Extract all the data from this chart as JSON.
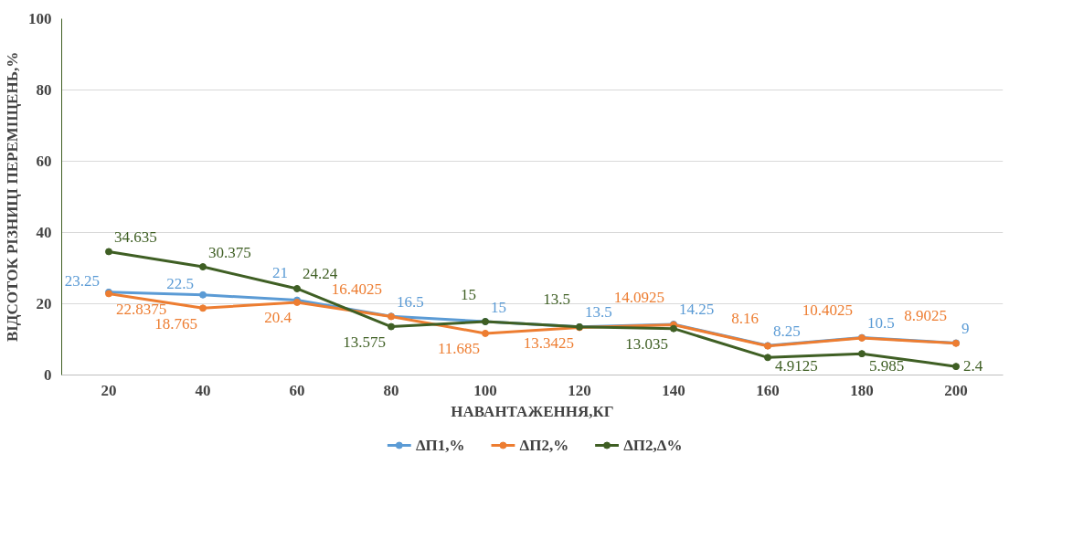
{
  "chart_data": {
    "type": "line",
    "xlabel": "НАВАНТАЖЕННЯ,КГ",
    "ylabel": "ВІДСОТОК РІЗНИЦІ ПЕРЕМІЩЕНЬ,%",
    "categories": [
      "20",
      "40",
      "60",
      "80",
      "100",
      "120",
      "140",
      "160",
      "180",
      "200"
    ],
    "ylim": [
      0,
      100
    ],
    "yticks": [
      0,
      20,
      40,
      60,
      80,
      100
    ],
    "grid": "y",
    "legend": "bottom",
    "marker": "circle",
    "line_style": "solid",
    "data_labels": true,
    "series": [
      {
        "name": "ΔП1,%",
        "color": "#5b9bd5",
        "values": [
          23.25,
          22.5,
          21,
          16.5,
          15,
          13.5,
          14.25,
          8.25,
          10.5,
          9
        ]
      },
      {
        "name": "ΔП2,%",
        "color": "#ed7d31",
        "values": [
          22.8375,
          18.765,
          20.4,
          16.4025,
          11.685,
          13.3425,
          14.0925,
          8.16,
          10.4025,
          8.9025
        ]
      },
      {
        "name": "ΔП2,Δ%",
        "color": "#3f5f24",
        "values": [
          34.635,
          30.375,
          24.24,
          13.575,
          15,
          13.5,
          13.035,
          4.9125,
          5.985,
          2.4
        ]
      }
    ]
  }
}
